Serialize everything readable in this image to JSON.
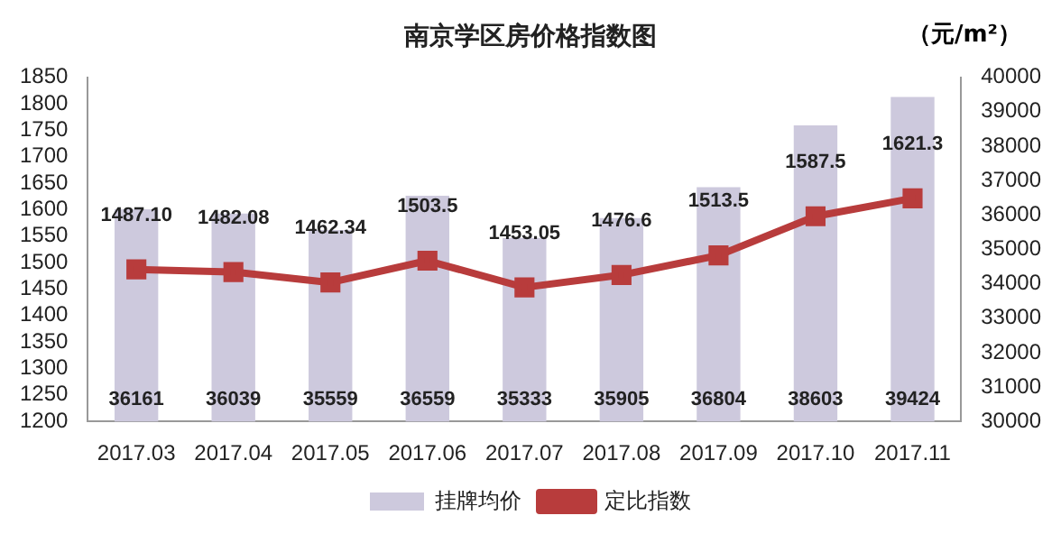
{
  "chart_data": {
    "type": "bar",
    "title": "南京学区房价格指数图",
    "annotations": [
      "（元/m²）"
    ],
    "categories": [
      "2017.03",
      "2017.04",
      "2017.05",
      "2017.06",
      "2017.07",
      "2017.08",
      "2017.09",
      "2017.10",
      "2017.11"
    ],
    "series": [
      {
        "name": "挂牌均价",
        "axis": "y2",
        "color": "#cdc9dd",
        "values": [
          36161,
          36039,
          35559,
          36559,
          35333,
          35905,
          36804,
          38603,
          39424
        ],
        "value_labels": [
          "36161",
          "36039",
          "35559",
          "36559",
          "35333",
          "35905",
          "36804",
          "38603",
          "39424"
        ]
      },
      {
        "name": "定比指数",
        "type": "line",
        "axis": "y",
        "color": "#b83c3c",
        "marker": "square",
        "values": [
          1487.1,
          1482.08,
          1462.34,
          1503.5,
          1453.05,
          1476.6,
          1513.5,
          1587.5,
          1621.3
        ],
        "value_labels": [
          "1487.10",
          "1482.08",
          "1462.34",
          "1503.5",
          "1453.05",
          "1476.6",
          "1513.5",
          "1587.5",
          "1621.3"
        ]
      }
    ],
    "ylim": [
      1200,
      1850
    ],
    "yticks": [
      1200,
      1250,
      1300,
      1350,
      1400,
      1450,
      1500,
      1550,
      1600,
      1650,
      1700,
      1750,
      1800,
      1850
    ],
    "y2lim": [
      30000,
      40000
    ],
    "y2ticks": [
      30000,
      31000,
      32000,
      33000,
      34000,
      35000,
      36000,
      37000,
      38000,
      39000,
      40000
    ],
    "legend": "bottom"
  }
}
